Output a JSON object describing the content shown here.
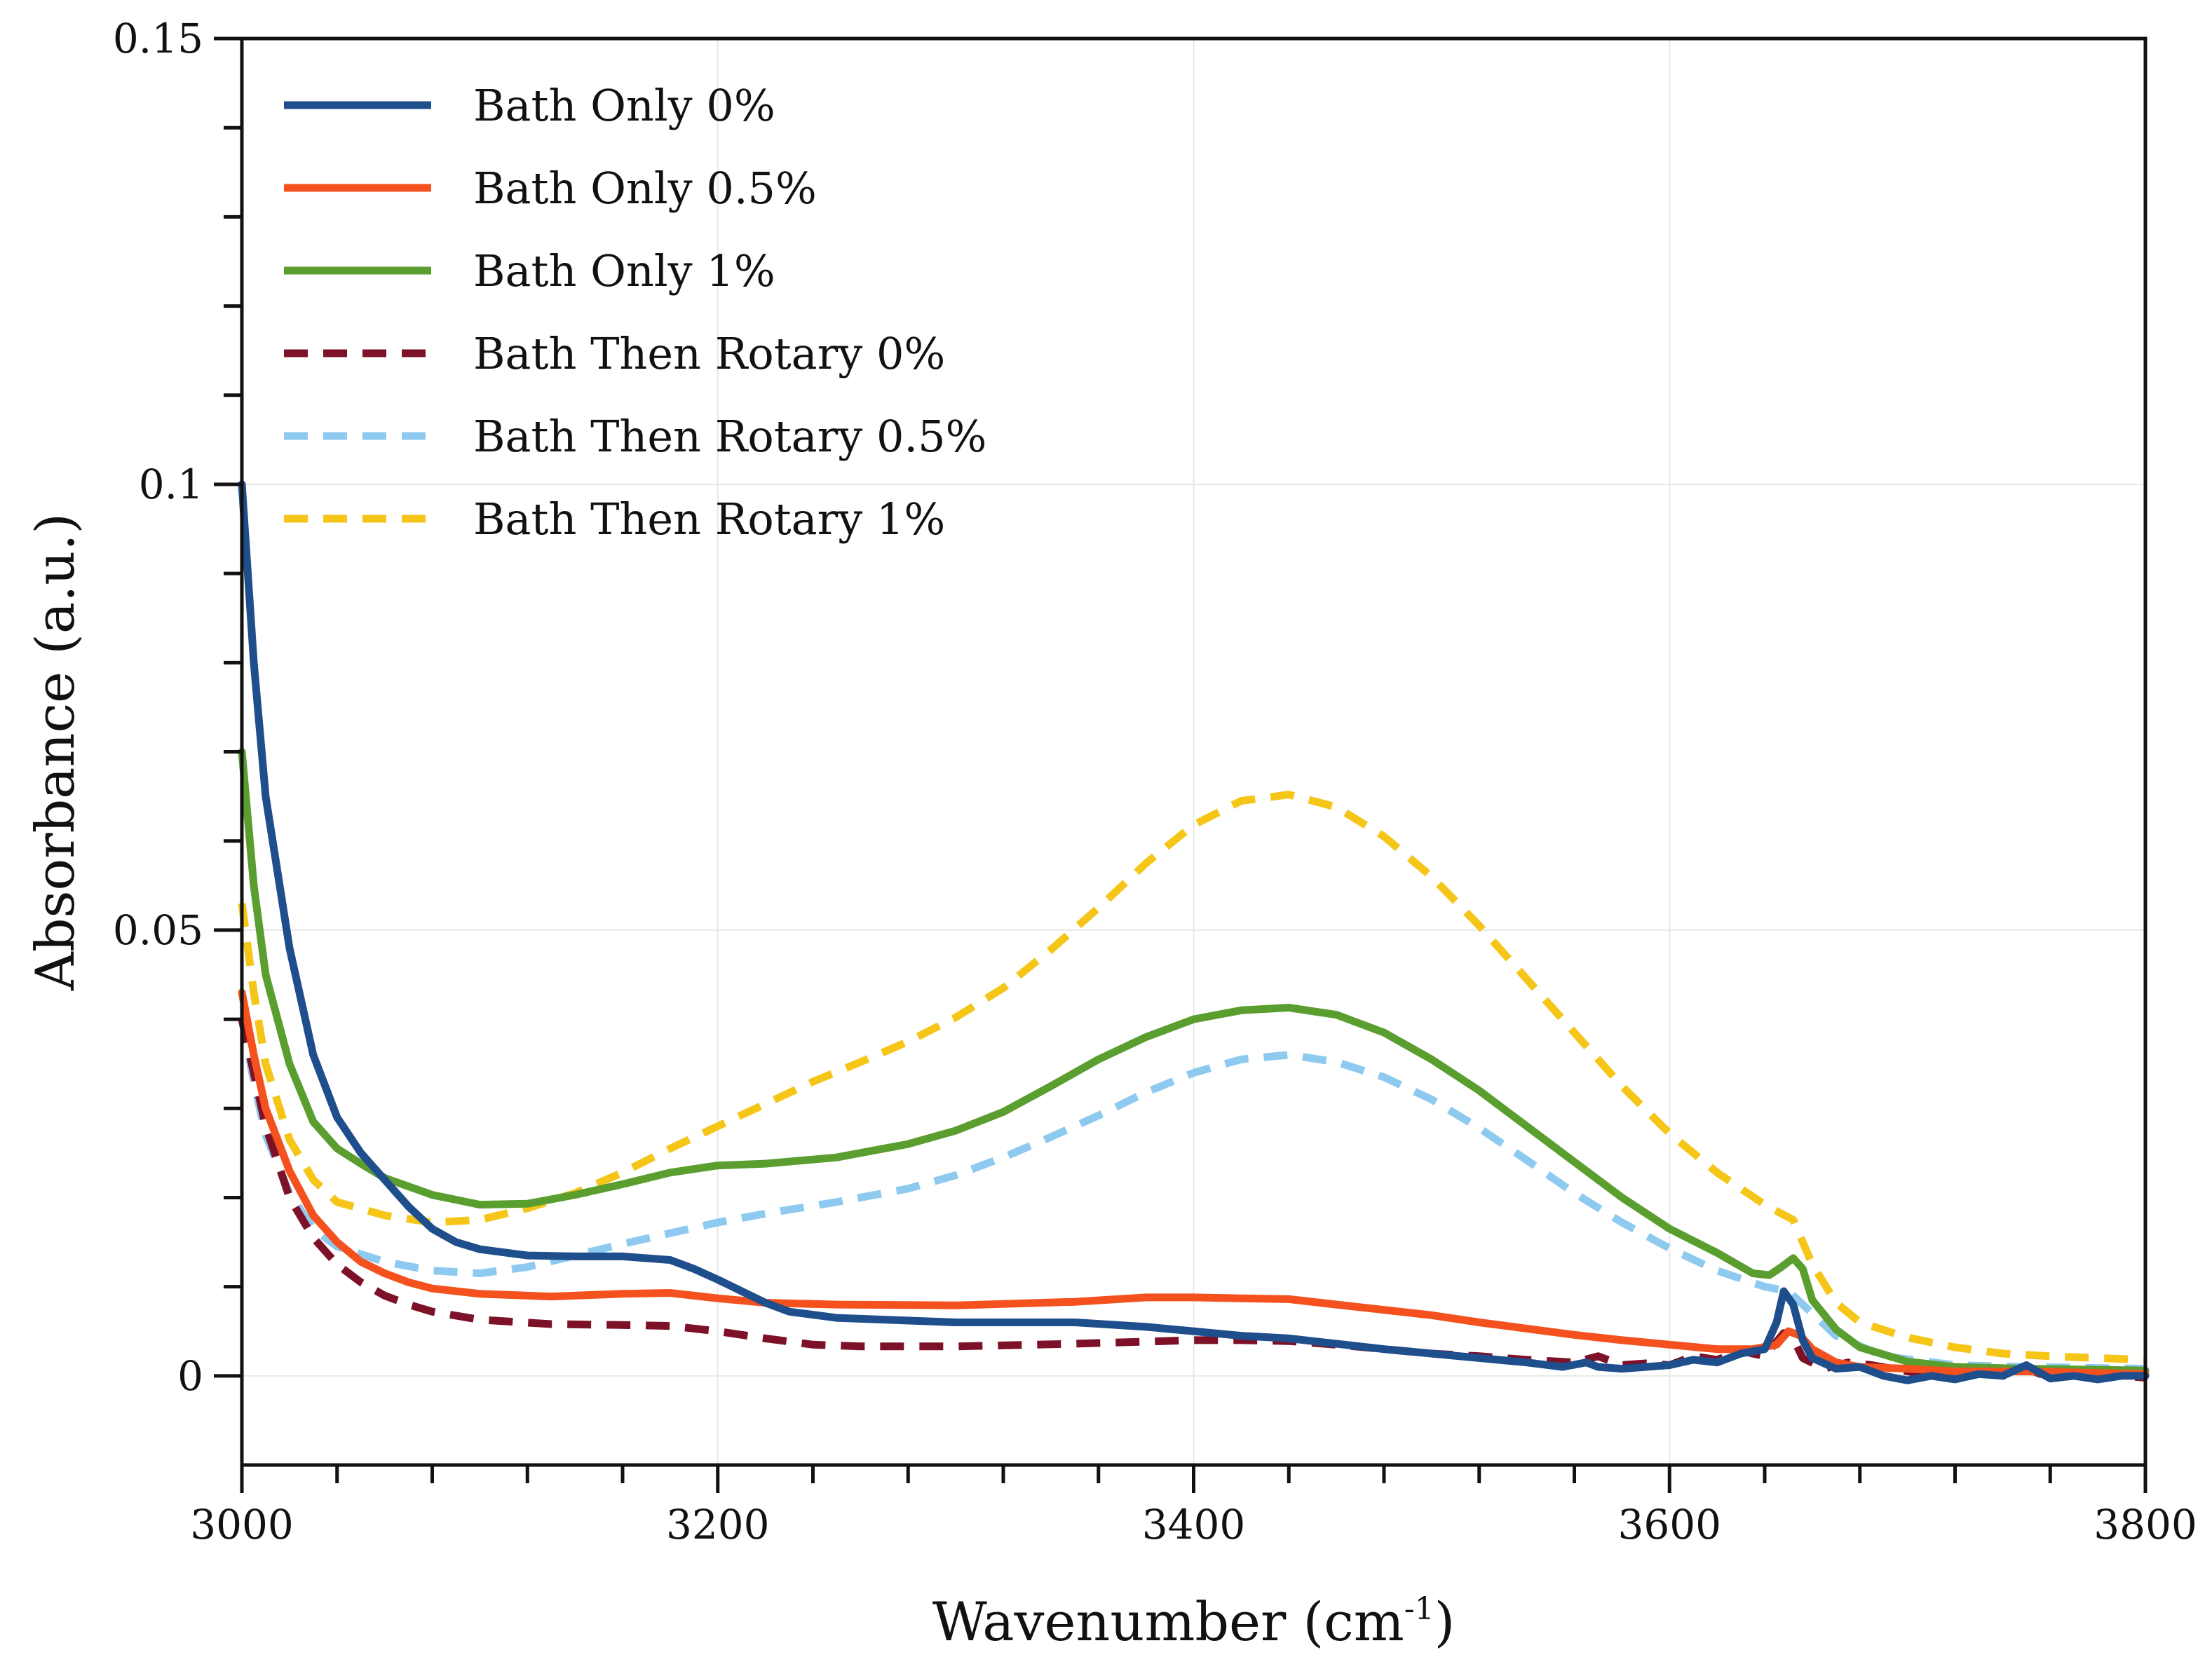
{
  "chart_data": {
    "type": "line",
    "title": "",
    "xlabel": "Wavenumber (cm",
    "xlabel_sup": "-1",
    "xlabel_end": ")",
    "ylabel": "Absorbance (a.u.)",
    "xlim": [
      3000,
      3800
    ],
    "ylim": [
      -0.01,
      0.15
    ],
    "x_ticks": [
      3000,
      3200,
      3400,
      3600,
      3800
    ],
    "x_tick_labels": [
      "3000",
      "3200",
      "3400",
      "3600",
      "3800"
    ],
    "y_ticks": [
      0,
      0.05,
      0.1,
      0.15
    ],
    "y_tick_labels": [
      "0",
      "0.05",
      "0.1",
      "0.15"
    ],
    "grid": true,
    "legend_position": "top-left",
    "series": [
      {
        "name": "Bath Only 0%",
        "color": "#1f4e8c",
        "style": "solid",
        "points": [
          [
            3000,
            0.1
          ],
          [
            3005,
            0.08
          ],
          [
            3010,
            0.065
          ],
          [
            3020,
            0.048
          ],
          [
            3030,
            0.036
          ],
          [
            3040,
            0.029
          ],
          [
            3050,
            0.025
          ],
          [
            3060,
            0.022
          ],
          [
            3070,
            0.019
          ],
          [
            3080,
            0.0165
          ],
          [
            3090,
            0.015
          ],
          [
            3100,
            0.0142
          ],
          [
            3120,
            0.0135
          ],
          [
            3140,
            0.0134
          ],
          [
            3160,
            0.0134
          ],
          [
            3180,
            0.013
          ],
          [
            3190,
            0.012
          ],
          [
            3200,
            0.0108
          ],
          [
            3210,
            0.0095
          ],
          [
            3220,
            0.0082
          ],
          [
            3230,
            0.0072
          ],
          [
            3250,
            0.0065
          ],
          [
            3300,
            0.006
          ],
          [
            3350,
            0.006
          ],
          [
            3380,
            0.0055
          ],
          [
            3400,
            0.005
          ],
          [
            3420,
            0.0045
          ],
          [
            3440,
            0.0042
          ],
          [
            3460,
            0.0036
          ],
          [
            3480,
            0.003
          ],
          [
            3500,
            0.0025
          ],
          [
            3520,
            0.002
          ],
          [
            3540,
            0.0015
          ],
          [
            3555,
            0.001
          ],
          [
            3565,
            0.0015
          ],
          [
            3570,
            0.001
          ],
          [
            3580,
            0.0008
          ],
          [
            3590,
            0.001
          ],
          [
            3600,
            0.0012
          ],
          [
            3610,
            0.0018
          ],
          [
            3620,
            0.0015
          ],
          [
            3630,
            0.0025
          ],
          [
            3640,
            0.003
          ],
          [
            3645,
            0.006
          ],
          [
            3648,
            0.0095
          ],
          [
            3652,
            0.008
          ],
          [
            3656,
            0.004
          ],
          [
            3660,
            0.002
          ],
          [
            3670,
            0.0008
          ],
          [
            3680,
            0.001
          ],
          [
            3690,
            0.0
          ],
          [
            3700,
            -0.0005
          ],
          [
            3710,
            0.0
          ],
          [
            3720,
            -0.0004
          ],
          [
            3730,
            0.0002
          ],
          [
            3740,
            0.0
          ],
          [
            3750,
            0.0012
          ],
          [
            3760,
            -0.0003
          ],
          [
            3770,
            0.0
          ],
          [
            3780,
            -0.0004
          ],
          [
            3790,
            0.0
          ],
          [
            3800,
            0.0
          ]
        ]
      },
      {
        "name": "Bath Only 0.5%",
        "color": "#f4511e",
        "style": "solid",
        "points": [
          [
            3000,
            0.043
          ],
          [
            3005,
            0.036
          ],
          [
            3010,
            0.03
          ],
          [
            3020,
            0.023
          ],
          [
            3030,
            0.018
          ],
          [
            3040,
            0.015
          ],
          [
            3050,
            0.0128
          ],
          [
            3060,
            0.0115
          ],
          [
            3070,
            0.0105
          ],
          [
            3080,
            0.0098
          ],
          [
            3100,
            0.0092
          ],
          [
            3130,
            0.0089
          ],
          [
            3160,
            0.0092
          ],
          [
            3180,
            0.0093
          ],
          [
            3200,
            0.0087
          ],
          [
            3220,
            0.0082
          ],
          [
            3250,
            0.008
          ],
          [
            3300,
            0.0079
          ],
          [
            3350,
            0.0083
          ],
          [
            3380,
            0.0088
          ],
          [
            3400,
            0.0088
          ],
          [
            3420,
            0.0087
          ],
          [
            3440,
            0.0086
          ],
          [
            3460,
            0.008
          ],
          [
            3480,
            0.0074
          ],
          [
            3500,
            0.0068
          ],
          [
            3520,
            0.006
          ],
          [
            3540,
            0.0053
          ],
          [
            3560,
            0.0046
          ],
          [
            3580,
            0.004
          ],
          [
            3600,
            0.0035
          ],
          [
            3620,
            0.003
          ],
          [
            3635,
            0.003
          ],
          [
            3645,
            0.0035
          ],
          [
            3650,
            0.005
          ],
          [
            3655,
            0.0045
          ],
          [
            3660,
            0.003
          ],
          [
            3670,
            0.0015
          ],
          [
            3680,
            0.001
          ],
          [
            3700,
            0.0008
          ],
          [
            3720,
            0.0005
          ],
          [
            3750,
            0.0005
          ],
          [
            3800,
            0.0002
          ]
        ]
      },
      {
        "name": "Bath Only 1%",
        "color": "#5a9e2f",
        "style": "solid",
        "points": [
          [
            3000,
            0.07
          ],
          [
            3005,
            0.055
          ],
          [
            3010,
            0.045
          ],
          [
            3020,
            0.035
          ],
          [
            3030,
            0.0285
          ],
          [
            3040,
            0.0255
          ],
          [
            3050,
            0.0238
          ],
          [
            3060,
            0.0222
          ],
          [
            3080,
            0.0203
          ],
          [
            3100,
            0.0192
          ],
          [
            3120,
            0.0193
          ],
          [
            3140,
            0.0203
          ],
          [
            3160,
            0.0215
          ],
          [
            3180,
            0.0228
          ],
          [
            3200,
            0.0236
          ],
          [
            3220,
            0.0238
          ],
          [
            3250,
            0.0245
          ],
          [
            3280,
            0.026
          ],
          [
            3300,
            0.0275
          ],
          [
            3320,
            0.0296
          ],
          [
            3340,
            0.0325
          ],
          [
            3360,
            0.0355
          ],
          [
            3380,
            0.038
          ],
          [
            3400,
            0.04
          ],
          [
            3420,
            0.041
          ],
          [
            3440,
            0.0413
          ],
          [
            3460,
            0.0405
          ],
          [
            3480,
            0.0385
          ],
          [
            3500,
            0.0355
          ],
          [
            3520,
            0.032
          ],
          [
            3540,
            0.028
          ],
          [
            3560,
            0.024
          ],
          [
            3580,
            0.02
          ],
          [
            3600,
            0.0165
          ],
          [
            3620,
            0.0138
          ],
          [
            3635,
            0.0115
          ],
          [
            3642,
            0.0113
          ],
          [
            3647,
            0.0122
          ],
          [
            3652,
            0.0132
          ],
          [
            3656,
            0.012
          ],
          [
            3660,
            0.0085
          ],
          [
            3670,
            0.0052
          ],
          [
            3680,
            0.0032
          ],
          [
            3700,
            0.0016
          ],
          [
            3720,
            0.001
          ],
          [
            3750,
            0.0008
          ],
          [
            3800,
            0.0006
          ]
        ]
      },
      {
        "name": "Bath Then Rotary 0%",
        "color": "#7d1128",
        "style": "dashed",
        "points": [
          [
            3000,
            0.04
          ],
          [
            3005,
            0.034
          ],
          [
            3010,
            0.028
          ],
          [
            3020,
            0.02
          ],
          [
            3030,
            0.0155
          ],
          [
            3040,
            0.0125
          ],
          [
            3050,
            0.0105
          ],
          [
            3060,
            0.009
          ],
          [
            3070,
            0.008
          ],
          [
            3080,
            0.0072
          ],
          [
            3100,
            0.0063
          ],
          [
            3130,
            0.0058
          ],
          [
            3160,
            0.0057
          ],
          [
            3180,
            0.0056
          ],
          [
            3200,
            0.005
          ],
          [
            3220,
            0.0042
          ],
          [
            3240,
            0.0035
          ],
          [
            3260,
            0.0033
          ],
          [
            3300,
            0.0033
          ],
          [
            3350,
            0.0036
          ],
          [
            3400,
            0.004
          ],
          [
            3420,
            0.004
          ],
          [
            3440,
            0.0039
          ],
          [
            3460,
            0.0035
          ],
          [
            3480,
            0.003
          ],
          [
            3500,
            0.0025
          ],
          [
            3520,
            0.0022
          ],
          [
            3540,
            0.0018
          ],
          [
            3560,
            0.0015
          ],
          [
            3570,
            0.0022
          ],
          [
            3580,
            0.0012
          ],
          [
            3590,
            0.0014
          ],
          [
            3600,
            0.0012
          ],
          [
            3610,
            0.0022
          ],
          [
            3620,
            0.0018
          ],
          [
            3630,
            0.0028
          ],
          [
            3640,
            0.0022
          ],
          [
            3648,
            0.0048
          ],
          [
            3652,
            0.0042
          ],
          [
            3656,
            0.002
          ],
          [
            3665,
            0.0008
          ],
          [
            3675,
            0.0015
          ],
          [
            3685,
            0.0012
          ],
          [
            3700,
            0.0005
          ],
          [
            3720,
            -0.0002
          ],
          [
            3730,
            0.0005
          ],
          [
            3740,
            0.0
          ],
          [
            3750,
            0.0008
          ],
          [
            3760,
            -0.0002
          ],
          [
            3780,
            0.0002
          ],
          [
            3800,
            -0.0002
          ]
        ]
      },
      {
        "name": "Bath Then Rotary 0.5%",
        "color": "#8ecaf0",
        "style": "dashed",
        "points": [
          [
            3000,
            0.04
          ],
          [
            3005,
            0.033
          ],
          [
            3010,
            0.027
          ],
          [
            3020,
            0.0205
          ],
          [
            3030,
            0.0165
          ],
          [
            3040,
            0.0145
          ],
          [
            3060,
            0.0128
          ],
          [
            3080,
            0.0118
          ],
          [
            3100,
            0.0115
          ],
          [
            3120,
            0.0122
          ],
          [
            3140,
            0.0135
          ],
          [
            3160,
            0.0148
          ],
          [
            3180,
            0.016
          ],
          [
            3200,
            0.0172
          ],
          [
            3220,
            0.0182
          ],
          [
            3250,
            0.0195
          ],
          [
            3280,
            0.021
          ],
          [
            3300,
            0.0225
          ],
          [
            3320,
            0.0245
          ],
          [
            3340,
            0.0268
          ],
          [
            3360,
            0.0292
          ],
          [
            3380,
            0.0318
          ],
          [
            3400,
            0.034
          ],
          [
            3420,
            0.0355
          ],
          [
            3440,
            0.036
          ],
          [
            3460,
            0.0352
          ],
          [
            3480,
            0.0335
          ],
          [
            3500,
            0.031
          ],
          [
            3520,
            0.0278
          ],
          [
            3540,
            0.0242
          ],
          [
            3560,
            0.0205
          ],
          [
            3580,
            0.0172
          ],
          [
            3600,
            0.0143
          ],
          [
            3620,
            0.0118
          ],
          [
            3640,
            0.01
          ],
          [
            3650,
            0.0095
          ],
          [
            3660,
            0.007
          ],
          [
            3670,
            0.0045
          ],
          [
            3690,
            0.0022
          ],
          [
            3720,
            0.0012
          ],
          [
            3750,
            0.001
          ],
          [
            3800,
            0.0008
          ]
        ]
      },
      {
        "name": "Bath Then Rotary 1%",
        "color": "#f5c518",
        "style": "dashed",
        "points": [
          [
            3000,
            0.053
          ],
          [
            3005,
            0.043
          ],
          [
            3010,
            0.035
          ],
          [
            3020,
            0.0265
          ],
          [
            3030,
            0.022
          ],
          [
            3040,
            0.0195
          ],
          [
            3060,
            0.018
          ],
          [
            3080,
            0.0172
          ],
          [
            3100,
            0.0175
          ],
          [
            3120,
            0.0188
          ],
          [
            3140,
            0.0205
          ],
          [
            3160,
            0.0228
          ],
          [
            3180,
            0.0255
          ],
          [
            3200,
            0.028
          ],
          [
            3220,
            0.0305
          ],
          [
            3240,
            0.033
          ],
          [
            3260,
            0.0352
          ],
          [
            3280,
            0.0375
          ],
          [
            3300,
            0.0402
          ],
          [
            3320,
            0.0435
          ],
          [
            3340,
            0.0478
          ],
          [
            3360,
            0.0525
          ],
          [
            3380,
            0.0575
          ],
          [
            3400,
            0.0618
          ],
          [
            3420,
            0.0645
          ],
          [
            3440,
            0.0652
          ],
          [
            3460,
            0.0638
          ],
          [
            3480,
            0.0605
          ],
          [
            3500,
            0.056
          ],
          [
            3520,
            0.0505
          ],
          [
            3540,
            0.0445
          ],
          [
            3560,
            0.0385
          ],
          [
            3580,
            0.0325
          ],
          [
            3600,
            0.0272
          ],
          [
            3620,
            0.0228
          ],
          [
            3640,
            0.0192
          ],
          [
            3652,
            0.0175
          ],
          [
            3660,
            0.0125
          ],
          [
            3670,
            0.0082
          ],
          [
            3680,
            0.006
          ],
          [
            3700,
            0.0043
          ],
          [
            3720,
            0.0032
          ],
          [
            3740,
            0.0025
          ],
          [
            3760,
            0.0022
          ],
          [
            3800,
            0.0018
          ]
        ]
      }
    ]
  }
}
